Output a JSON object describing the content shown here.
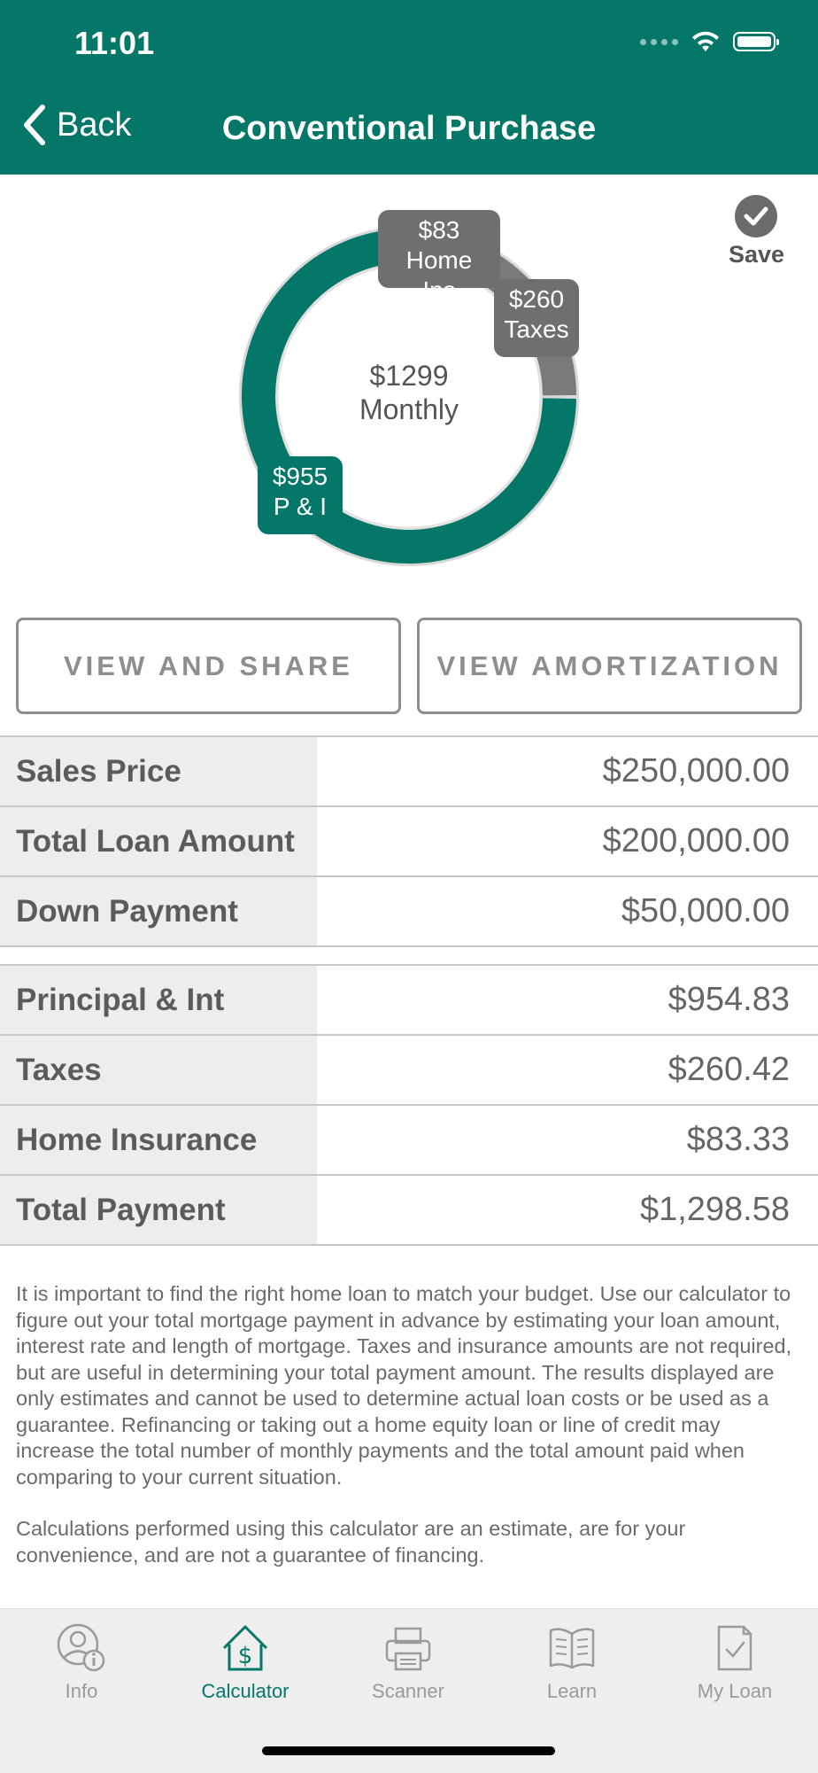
{
  "status_bar": {
    "time": "11:01"
  },
  "header": {
    "back_label": "Back",
    "title": "Conventional Purchase"
  },
  "chart": {
    "center_amount": "$1299",
    "center_label": "Monthly",
    "segments": [
      {
        "amount": "$83",
        "label": "Home Ins",
        "value": 83.33,
        "color": "#7a7a7a"
      },
      {
        "amount": "$260",
        "label": "Taxes",
        "value": 260.42,
        "color": "#7a7a7a"
      },
      {
        "amount": "$955",
        "label": "P & I",
        "value": 954.83,
        "color": "#047768"
      }
    ]
  },
  "save": {
    "label": "Save"
  },
  "buttons": {
    "view_share": "VIEW AND SHARE",
    "view_amortization": "VIEW AMORTIZATION"
  },
  "loan_table": [
    {
      "label": "Sales Price",
      "value": "$250,000.00"
    },
    {
      "label": "Total Loan Amount",
      "value": "$200,000.00"
    },
    {
      "label": "Down Payment",
      "value": "$50,000.00"
    }
  ],
  "payment_table": [
    {
      "label": "Principal & Int",
      "value": "$954.83"
    },
    {
      "label": "Taxes",
      "value": "$260.42"
    },
    {
      "label": "Home Insurance",
      "value": "$83.33"
    },
    {
      "label": "Total Payment",
      "value": "$1,298.58"
    }
  ],
  "disclaimer": [
    "It is important to find the right home loan to match your budget. Use our calculator to figure out your total mortgage payment in advance by estimating your loan amount, interest rate and length of mortgage. Taxes and insurance amounts are not required, but are useful in determining your total payment amount.  The results displayed are only estimates and cannot be used to determine actual loan costs or be used as a guarantee. Refinancing or taking out a home equity loan or line of credit may increase the total number of monthly payments and the total amount paid when comparing to your current situation.",
    "Calculations performed using this calculator are an estimate, are for your convenience, and are not a guarantee of financing."
  ],
  "tabs": [
    {
      "label": "Info",
      "icon": "person-info-icon",
      "active": false
    },
    {
      "label": "Calculator",
      "icon": "house-dollar-icon",
      "active": true
    },
    {
      "label": "Scanner",
      "icon": "printer-icon",
      "active": false
    },
    {
      "label": "Learn",
      "icon": "book-icon",
      "active": false
    },
    {
      "label": "My Loan",
      "icon": "document-check-icon",
      "active": false
    }
  ],
  "colors": {
    "brand": "#047768",
    "secondary": "#7a7a7a"
  }
}
